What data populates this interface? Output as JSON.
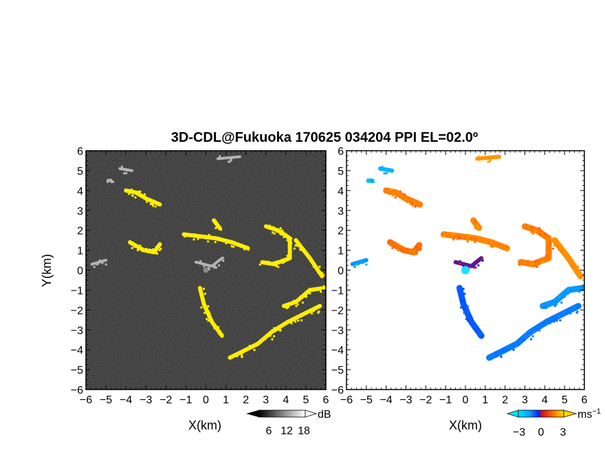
{
  "chart_data": {
    "type": "heatmap",
    "title": "3D-CDL@Fukuoka 170625 034204 PPI EL=02.0º",
    "panels": [
      {
        "id": "reflectivity",
        "xlabel": "X(km)",
        "ylabel": "Y(km)",
        "xlim": [
          -6,
          6
        ],
        "ylim": [
          -6,
          6
        ],
        "x_ticks": [
          "−6",
          "−5",
          "−4",
          "−3",
          "−2",
          "−1",
          "0",
          "1",
          "2",
          "3",
          "4",
          "5",
          "6"
        ],
        "y_ticks": [
          "−6",
          "−5",
          "−4",
          "−3",
          "−2",
          "−1",
          "0",
          "1",
          "2",
          "3",
          "4",
          "5",
          "6"
        ],
        "background": "#1e1e1e",
        "colorbar": {
          "unit": "dB",
          "ticks": [
            "6",
            "12",
            "18"
          ],
          "range": [
            0,
            20
          ]
        },
        "highlight_color": "#ffee00"
      },
      {
        "id": "velocity",
        "xlabel": "X(km)",
        "xlim": [
          -6,
          6
        ],
        "ylim": [
          -6,
          6
        ],
        "x_ticks": [
          "−6",
          "−5",
          "−4",
          "−3",
          "−2",
          "−1",
          "0",
          "1",
          "2",
          "3",
          "4",
          "5",
          "6"
        ],
        "y_ticks": [
          "−6",
          "−5",
          "−4",
          "−3",
          "−2",
          "−1",
          "0",
          "1",
          "2",
          "3",
          "4",
          "5",
          "6"
        ],
        "background": "#ffffff",
        "colorbar": {
          "unit": "ms",
          "unit_sup": "−1",
          "ticks": [
            "−3",
            "0",
            "3"
          ],
          "range": [
            -5,
            5
          ]
        }
      }
    ],
    "features": [
      {
        "name": "north-edge",
        "pts": [
          [
            0.6,
            5.6
          ],
          [
            1.7,
            5.7
          ]
        ],
        "refl": "gray",
        "vel": 2.6
      },
      {
        "name": "west-cluster",
        "pts": [
          [
            -4.3,
            5.1
          ],
          [
            -3.7,
            5.0
          ]
        ],
        "refl": "gray",
        "vel": -3.5
      },
      {
        "name": "west-cluster-2",
        "pts": [
          [
            -4.9,
            4.5
          ],
          [
            -4.7,
            4.5
          ]
        ],
        "refl": "gray",
        "vel": -3.5
      },
      {
        "name": "nw-band",
        "pts": [
          [
            -4.0,
            4.0
          ],
          [
            -3.5,
            3.9
          ],
          [
            -3.0,
            3.6
          ],
          [
            -2.3,
            3.3
          ]
        ],
        "refl": "yellow",
        "vel": 2.2
      },
      {
        "name": "west-band",
        "pts": [
          [
            -3.8,
            1.4
          ],
          [
            -3.1,
            1.0
          ],
          [
            -2.6,
            0.9
          ],
          [
            -2.3,
            1.3
          ]
        ],
        "refl": "yellow",
        "vel": 2.0
      },
      {
        "name": "far-west-point",
        "pts": [
          [
            -5.7,
            0.3
          ],
          [
            -5.0,
            0.5
          ]
        ],
        "refl": "gray",
        "vel": -2.8
      },
      {
        "name": "center-clutter",
        "pts": [
          [
            -0.5,
            0.4
          ],
          [
            0.3,
            0.2
          ],
          [
            0.8,
            0.6
          ]
        ],
        "refl": "gray",
        "vel": 0.0
      },
      {
        "name": "central-arc",
        "pts": [
          [
            -1.1,
            1.8
          ],
          [
            -0.3,
            1.7
          ],
          [
            0.5,
            1.6
          ],
          [
            1.3,
            1.4
          ],
          [
            2.1,
            1.1
          ]
        ],
        "refl": "yellow",
        "vel": 2.3
      },
      {
        "name": "arc-peak",
        "pts": [
          [
            0.4,
            2.5
          ],
          [
            0.7,
            2.1
          ]
        ],
        "refl": "yellow",
        "vel": 2.4
      },
      {
        "name": "east-band",
        "pts": [
          [
            3.0,
            2.2
          ],
          [
            3.6,
            2.0
          ],
          [
            4.2,
            1.6
          ],
          [
            4.2,
            0.6
          ],
          [
            3.4,
            0.3
          ],
          [
            2.8,
            0.4
          ]
        ],
        "refl": "yellow",
        "vel": 2.2
      },
      {
        "name": "far-east-band",
        "pts": [
          [
            4.5,
            1.5
          ],
          [
            5.2,
            0.6
          ],
          [
            5.8,
            -0.3
          ]
        ],
        "refl": "yellow",
        "vel": 2.5
      },
      {
        "name": "sw-streak",
        "pts": [
          [
            -0.3,
            -0.9
          ],
          [
            -0.1,
            -1.7
          ],
          [
            0.3,
            -2.6
          ],
          [
            0.8,
            -3.3
          ]
        ],
        "refl": "yellow",
        "vel": -1.5
      },
      {
        "name": "southern-arc",
        "pts": [
          [
            1.2,
            -4.4
          ],
          [
            1.8,
            -4.1
          ],
          [
            2.6,
            -3.7
          ],
          [
            3.3,
            -3.1
          ],
          [
            4.1,
            -2.6
          ],
          [
            4.9,
            -2.2
          ],
          [
            5.7,
            -1.8
          ]
        ],
        "refl": "yellow",
        "vel": -2.2
      },
      {
        "name": "se-east",
        "pts": [
          [
            3.9,
            -1.8
          ],
          [
            4.5,
            -1.6
          ],
          [
            5.2,
            -1.0
          ],
          [
            5.9,
            -0.9
          ]
        ],
        "refl": "yellow",
        "vel": -2.8
      },
      {
        "name": "radar-center",
        "pts": [
          [
            0.0,
            0.0
          ]
        ],
        "refl": "gray",
        "vel": -2.0
      }
    ]
  }
}
